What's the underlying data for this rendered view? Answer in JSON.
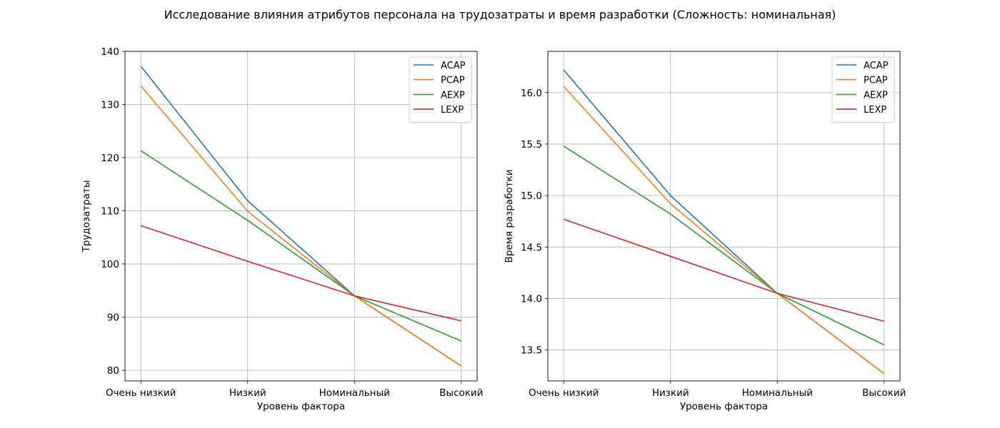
{
  "suptitle": "Исследование влияния атрибутов персонала на трудозатраты и время разработки (Сложность: номинальная)",
  "chart_data": [
    {
      "type": "line",
      "categories": [
        "Очень низкий",
        "Низкий",
        "Номинальный",
        "Высокий"
      ],
      "xlabel": "Уровень фактора",
      "ylabel": "Трудозатраты",
      "ylim": [
        78,
        140
      ],
      "yticks": [
        80,
        90,
        100,
        110,
        120,
        130,
        140
      ],
      "grid": true,
      "legend_position": "top-right",
      "series": [
        {
          "name": "ACAP",
          "color": "#1f77b4",
          "values": [
            137.2,
            111.9,
            94.0,
            80.8
          ]
        },
        {
          "name": "PCAP",
          "color": "#ff7f0e",
          "values": [
            133.5,
            109.9,
            94.0,
            80.8
          ]
        },
        {
          "name": "AEXP",
          "color": "#2ca02c",
          "values": [
            121.3,
            108.2,
            94.0,
            85.5
          ]
        },
        {
          "name": "LEXP",
          "color": "#d62728",
          "values": [
            107.2,
            100.5,
            94.0,
            89.3
          ]
        }
      ]
    },
    {
      "type": "line",
      "categories": [
        "Очень низкий",
        "Низкий",
        "Номинальный",
        "Высокий"
      ],
      "xlabel": "Уровень фактора",
      "ylabel": "Время разработки",
      "ylim": [
        13.2,
        16.4
      ],
      "yticks": [
        13.5,
        14.0,
        14.5,
        15.0,
        15.5,
        16.0
      ],
      "ytick_labels": [
        "13.5",
        "14.0",
        "14.5",
        "15.0",
        "15.5",
        "16.0"
      ],
      "grid": true,
      "legend_position": "top-right",
      "series": [
        {
          "name": "ACAP",
          "color": "#1f77b4",
          "values": [
            16.22,
            15.0,
            14.05,
            13.27
          ]
        },
        {
          "name": "PCAP",
          "color": "#ff7f0e",
          "values": [
            16.06,
            14.92,
            14.05,
            13.27
          ]
        },
        {
          "name": "AEXP",
          "color": "#2ca02c",
          "values": [
            15.48,
            14.82,
            14.05,
            13.55
          ]
        },
        {
          "name": "LEXP",
          "color": "#d62728",
          "values": [
            14.77,
            14.41,
            14.05,
            13.78
          ]
        }
      ]
    }
  ]
}
